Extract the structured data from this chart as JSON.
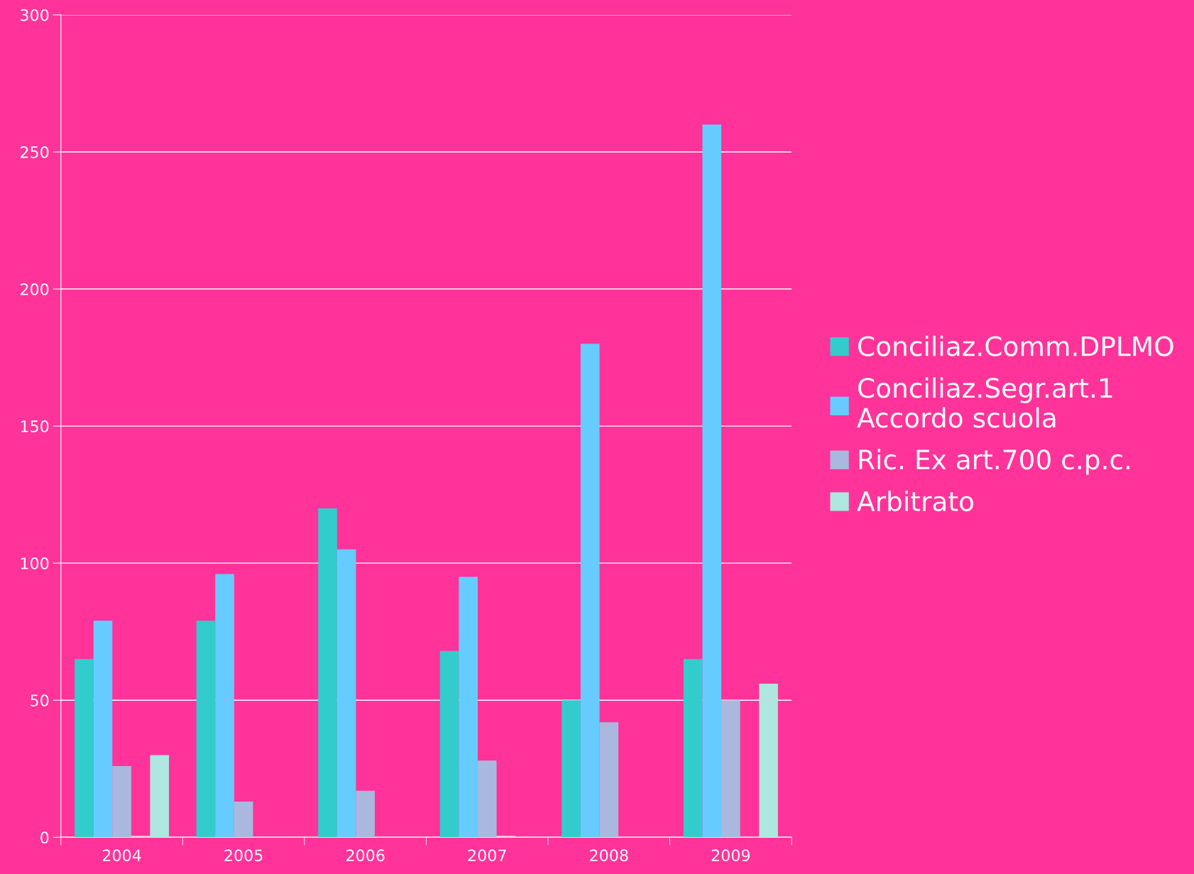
{
  "chart_data": {
    "type": "bar",
    "categories": [
      "2004",
      "2005",
      "2006",
      "2007",
      "2008",
      "2009"
    ],
    "series": [
      {
        "name": "Conciliaz.Comm.DPLMO",
        "color": "#33cccc",
        "values": [
          65,
          79,
          120,
          68,
          50,
          65
        ]
      },
      {
        "name": "Conciliaz.Segr.art.1\nAccordo scuola",
        "color": "#66ccff",
        "values": [
          79,
          96,
          105,
          95,
          180,
          260
        ]
      },
      {
        "name": "Ric. Ex art.700 c.p.c.",
        "color": "#aab8e0",
        "values": [
          26,
          13,
          17,
          28,
          42,
          50
        ]
      },
      {
        "color": "#f5d0e6",
        "values": [
          0.5,
          null,
          null,
          0.5,
          null,
          null
        ]
      },
      {
        "name": "Arbitrato",
        "color": "#aee6e0",
        "values": [
          30,
          null,
          null,
          null,
          null,
          56
        ]
      }
    ],
    "ylim": [
      0,
      300
    ],
    "yticks": [
      0,
      50,
      100,
      150,
      200,
      250,
      300
    ],
    "grid": "y",
    "legend": "right"
  }
}
